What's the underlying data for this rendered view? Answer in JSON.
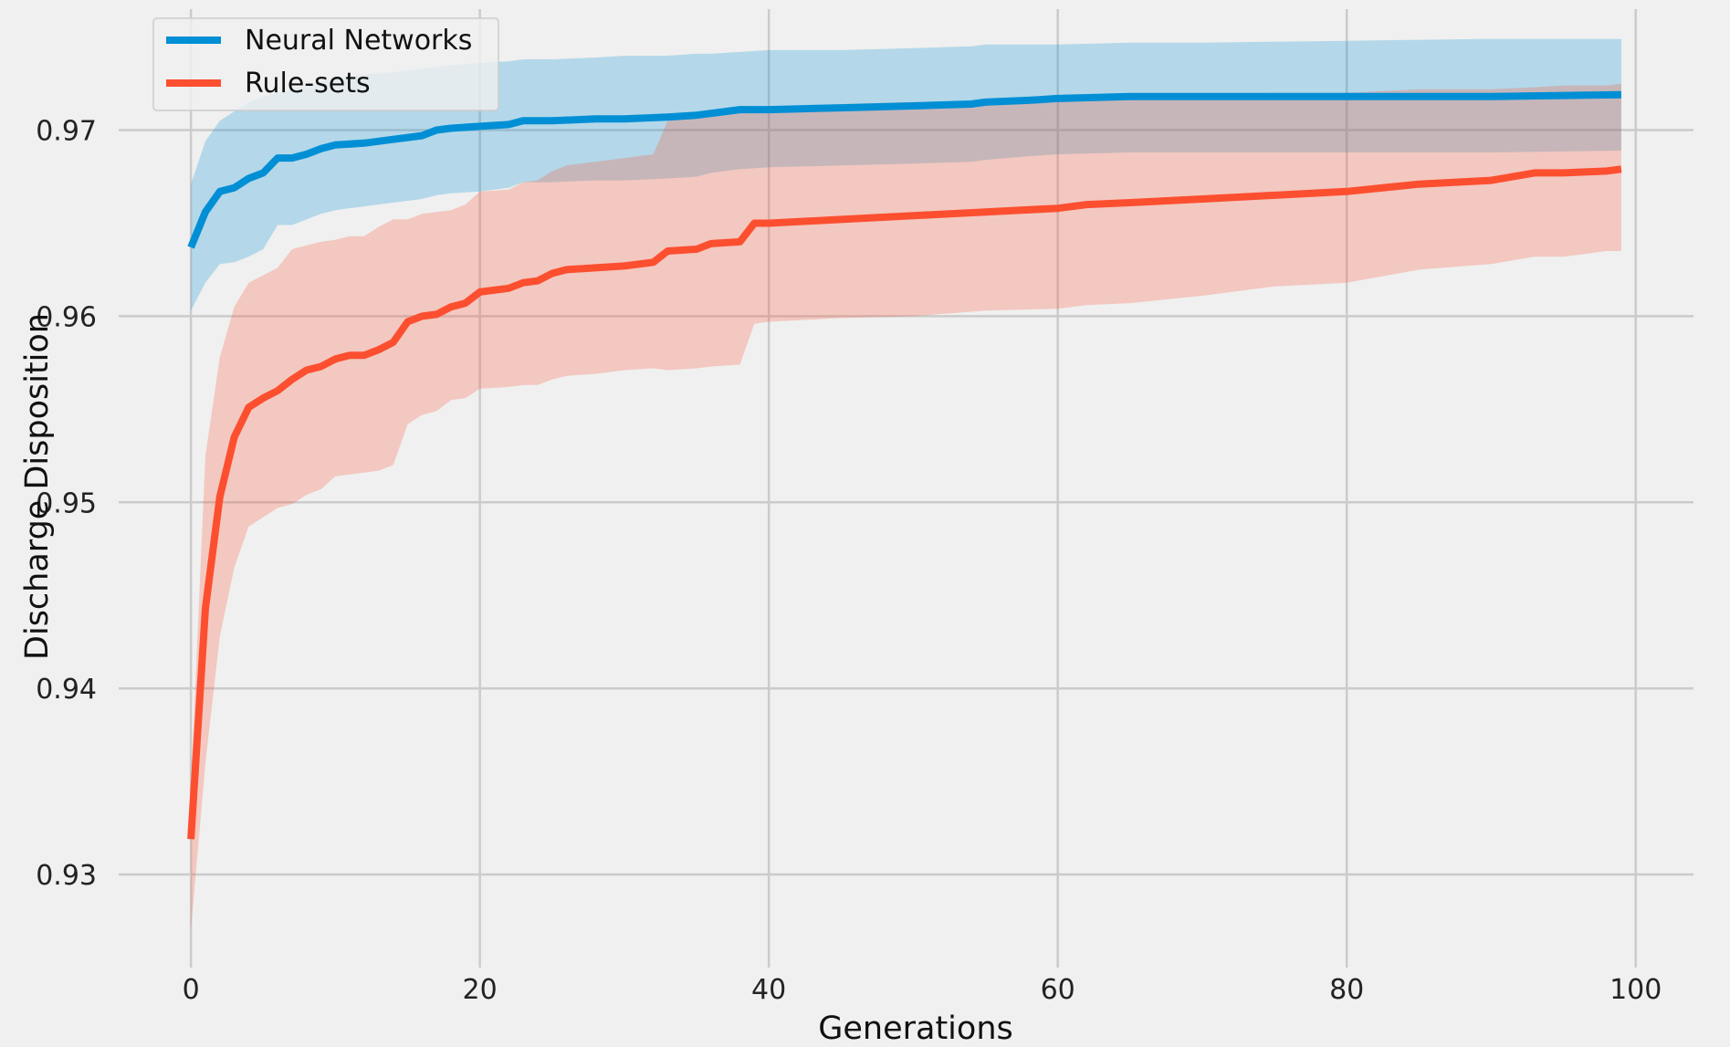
{
  "chart_data": {
    "type": "line",
    "title": "",
    "xlabel": "Generations",
    "ylabel": "Discharge Disposition",
    "xlim": [
      -5,
      104
    ],
    "ylim": [
      0.925,
      0.9765
    ],
    "xticks": [
      0,
      20,
      40,
      60,
      80,
      100
    ],
    "xtick_labels": [
      "0",
      "20",
      "40",
      "60",
      "80",
      "100"
    ],
    "yticks": [
      0.93,
      0.94,
      0.95,
      0.96,
      0.97
    ],
    "ytick_labels": [
      "0.93",
      "0.94",
      "0.95",
      "0.96",
      "0.97"
    ],
    "grid": true,
    "legend_position": "top-left",
    "series": [
      {
        "name": "Neural Networks",
        "color": "#008fd5",
        "band_color": "#a6d1ea",
        "x": [
          0,
          1,
          2,
          3,
          4,
          5,
          6,
          7,
          8,
          9,
          10,
          12,
          14,
          16,
          17,
          18,
          20,
          22,
          23,
          25,
          28,
          30,
          33,
          35,
          36,
          38,
          40,
          45,
          50,
          54,
          55,
          58,
          60,
          65,
          70,
          80,
          90,
          99
        ],
        "mean": [
          0.9637,
          0.9656,
          0.9667,
          0.9669,
          0.9674,
          0.9677,
          0.9685,
          0.9685,
          0.9687,
          0.969,
          0.9692,
          0.9693,
          0.9695,
          0.9697,
          0.97,
          0.9701,
          0.9702,
          0.9703,
          0.9705,
          0.9705,
          0.9706,
          0.9706,
          0.9707,
          0.9708,
          0.9709,
          0.9711,
          0.9711,
          0.9712,
          0.9713,
          0.9714,
          0.9715,
          0.9716,
          0.9717,
          0.9718,
          0.9718,
          0.9718,
          0.9718,
          0.9719
        ],
        "upper": [
          0.9671,
          0.9694,
          0.9705,
          0.971,
          0.9715,
          0.9718,
          0.972,
          0.9722,
          0.9724,
          0.9726,
          0.9728,
          0.973,
          0.9731,
          0.9733,
          0.9734,
          0.9735,
          0.9736,
          0.9737,
          0.9738,
          0.9738,
          0.9739,
          0.974,
          0.974,
          0.9741,
          0.9741,
          0.9742,
          0.9743,
          0.9743,
          0.9744,
          0.9745,
          0.9746,
          0.9746,
          0.9746,
          0.9747,
          0.9747,
          0.9748,
          0.9749,
          0.9749
        ],
        "lower": [
          0.9603,
          0.9618,
          0.9628,
          0.9629,
          0.9632,
          0.9636,
          0.9649,
          0.9649,
          0.9652,
          0.9655,
          0.9657,
          0.9659,
          0.9661,
          0.9663,
          0.9665,
          0.9666,
          0.9667,
          0.9669,
          0.9672,
          0.9672,
          0.9673,
          0.9673,
          0.9674,
          0.9675,
          0.9677,
          0.9679,
          0.968,
          0.9681,
          0.9682,
          0.9683,
          0.9684,
          0.9686,
          0.9687,
          0.9688,
          0.9688,
          0.9688,
          0.9688,
          0.9689
        ]
      },
      {
        "name": "Rule-sets",
        "color": "#fc4f30",
        "band_color": "#f3c1b8",
        "x": [
          0,
          1,
          2,
          3,
          4,
          5,
          6,
          7,
          8,
          9,
          10,
          11,
          12,
          13,
          14,
          15,
          16,
          17,
          18,
          19,
          20,
          22,
          23,
          24,
          25,
          26,
          28,
          30,
          32,
          33,
          35,
          36,
          38,
          39,
          40,
          45,
          50,
          55,
          60,
          62,
          65,
          70,
          75,
          80,
          85,
          90,
          93,
          95,
          98,
          99
        ],
        "mean": [
          0.9319,
          0.9443,
          0.9503,
          0.9535,
          0.9551,
          0.9556,
          0.956,
          0.9566,
          0.9571,
          0.9573,
          0.9577,
          0.9579,
          0.9579,
          0.9582,
          0.9586,
          0.9597,
          0.96,
          0.9601,
          0.9605,
          0.9607,
          0.9613,
          0.9615,
          0.9618,
          0.9619,
          0.9623,
          0.9625,
          0.9626,
          0.9627,
          0.9629,
          0.9635,
          0.9636,
          0.9639,
          0.964,
          0.965,
          0.965,
          0.9652,
          0.9654,
          0.9656,
          0.9658,
          0.966,
          0.9661,
          0.9663,
          0.9665,
          0.9667,
          0.9671,
          0.9673,
          0.9677,
          0.9677,
          0.9678,
          0.9679
        ],
        "upper": [
          0.9347,
          0.9525,
          0.9578,
          0.9605,
          0.9618,
          0.9622,
          0.9626,
          0.9636,
          0.9638,
          0.964,
          0.9641,
          0.9643,
          0.9643,
          0.9648,
          0.9652,
          0.9652,
          0.9655,
          0.9656,
          0.9657,
          0.966,
          0.9667,
          0.9668,
          0.9672,
          0.9673,
          0.9678,
          0.9681,
          0.9683,
          0.9685,
          0.9687,
          0.9705,
          0.9707,
          0.9711,
          0.9711,
          0.9711,
          0.9712,
          0.9714,
          0.9715,
          0.9716,
          0.9716,
          0.9717,
          0.9718,
          0.9719,
          0.972,
          0.972,
          0.9722,
          0.9722,
          0.9723,
          0.9724,
          0.9724,
          0.9725
        ],
        "lower": [
          0.927,
          0.936,
          0.9428,
          0.9465,
          0.9487,
          0.9492,
          0.9497,
          0.9499,
          0.9504,
          0.9507,
          0.9514,
          0.9515,
          0.9516,
          0.9517,
          0.952,
          0.9542,
          0.9547,
          0.9549,
          0.9555,
          0.9556,
          0.9561,
          0.9562,
          0.9563,
          0.9563,
          0.9566,
          0.9568,
          0.9569,
          0.9571,
          0.9572,
          0.9571,
          0.9572,
          0.9573,
          0.9574,
          0.9596,
          0.9597,
          0.9599,
          0.96,
          0.9603,
          0.9604,
          0.9606,
          0.9607,
          0.9611,
          0.9616,
          0.9618,
          0.9625,
          0.9628,
          0.9632,
          0.9632,
          0.9635,
          0.9635
        ]
      }
    ]
  }
}
